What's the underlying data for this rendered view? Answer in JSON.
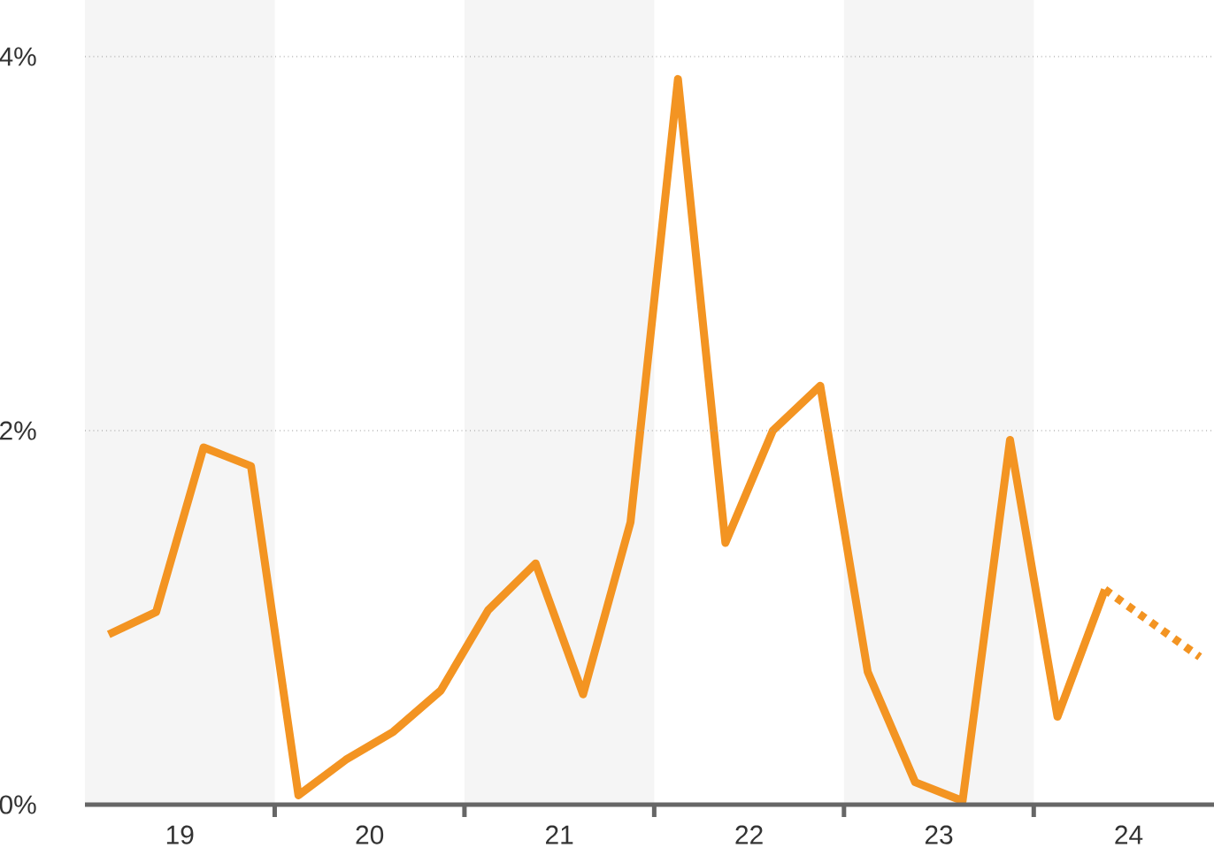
{
  "chart_data": {
    "type": "line",
    "series": [
      {
        "color": "#f39422",
        "line_style": "solid",
        "x": [
          18.625,
          18.875,
          19.125,
          19.375,
          19.625,
          19.875,
          20.125,
          20.375,
          20.625,
          20.875,
          21.125,
          21.375,
          21.625,
          21.875,
          22.125,
          22.375,
          22.625,
          22.875,
          23.125,
          23.375,
          23.625,
          23.875
        ],
        "values": [
          0.91,
          1.03,
          1.91,
          1.81,
          0.05,
          0.24,
          0.39,
          0.61,
          1.04,
          1.29,
          0.59,
          1.51,
          3.88,
          1.4,
          2.0,
          2.24,
          0.71,
          0.12,
          0.02,
          1.95,
          0.47,
          1.15
        ]
      },
      {
        "color": "#f39422",
        "line_style": "dotted",
        "x": [
          23.875,
          24.375
        ],
        "values": [
          1.15,
          0.79
        ]
      }
    ],
    "xlim": [
      18.5,
      24.45
    ],
    "xticks": [
      19,
      {
        "value": 19.5,
        "label": null
      },
      20,
      {
        "value": 20.5,
        "label": null
      },
      21,
      {
        "value": 21.5,
        "label": null
      },
      22,
      {
        "value": 22.5,
        "label": null
      },
      23,
      {
        "value": 23.5,
        "label": null
      },
      24
    ],
    "ylim": [
      0,
      4
    ],
    "yticks": [
      {
        "value": 0,
        "label": "0%"
      },
      {
        "value": 2,
        "label": "2%"
      },
      {
        "value": 4,
        "label": "4%"
      }
    ],
    "bands": [
      {
        "axis": "x",
        "from": 18.5,
        "to": 19.5,
        "color": "#f5f5f5"
      },
      {
        "axis": "x",
        "from": 20.5,
        "to": 21.5,
        "color": "#f5f5f5"
      },
      {
        "axis": "x",
        "from": 22.5,
        "to": 23.5,
        "color": "#f5f5f5"
      }
    ],
    "grid": "y"
  }
}
